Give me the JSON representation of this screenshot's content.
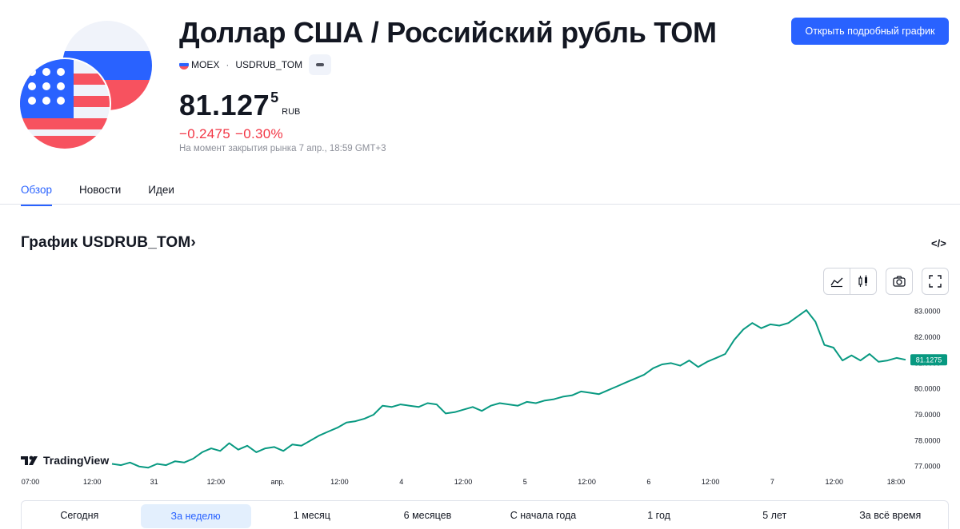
{
  "header": {
    "title": "Доллар США / Российский рубль TOM",
    "exchange": "MOEX",
    "symbol": "USDRUB_TOM",
    "open_button": "Открыть подробный график"
  },
  "quote": {
    "price_main": "81.127",
    "price_sup": "5",
    "currency": "RUB",
    "change_abs": "−0.2475",
    "change_pct": "−0.30%",
    "note": "На момент закрытия рынка 7 апр., 18:59 GMT+3"
  },
  "tabs": [
    "Обзор",
    "Новости",
    "Идеи"
  ],
  "section": {
    "title": "График USDRUB_TOM›",
    "embed": "</>"
  },
  "branding": {
    "tv_logo": "TradingView"
  },
  "colors": {
    "accent": "#2962ff",
    "line": "#089981",
    "negative": "#f23645"
  },
  "chart_data": {
    "type": "line",
    "series": [
      {
        "values": [
          77.1,
          77.05,
          77.15,
          77.0,
          76.95,
          77.1,
          77.05,
          77.2,
          77.15,
          77.3,
          77.55,
          77.7,
          77.6,
          77.9,
          77.65,
          77.8,
          77.55,
          77.7,
          77.75,
          77.6,
          77.85,
          77.8,
          78.0,
          78.2,
          78.35,
          78.5,
          78.7,
          78.75,
          78.85,
          79.0,
          79.35,
          79.3,
          79.4,
          79.35,
          79.3,
          79.45,
          79.4,
          79.05,
          79.1,
          79.2,
          79.3,
          79.15,
          79.35,
          79.45,
          79.4,
          79.35,
          79.5,
          79.45,
          79.55,
          79.6,
          79.7,
          79.75,
          79.9,
          79.85,
          79.8,
          79.95,
          80.1,
          80.25,
          80.4,
          80.55,
          80.8,
          80.95,
          81.0,
          80.9,
          81.1,
          80.85,
          81.05,
          81.2,
          81.35,
          81.9,
          82.3,
          82.55,
          82.35,
          82.5,
          82.45,
          82.55,
          82.8,
          83.05,
          82.6,
          81.7,
          81.6,
          81.1,
          81.3,
          81.1,
          81.35,
          81.05,
          81.1,
          81.2,
          81.1275
        ],
        "last_value": "81.1275"
      }
    ],
    "x_tick_labels": [
      "07:00",
      "12:00",
      "31",
      "12:00",
      "апр.",
      "12:00",
      "4",
      "12:00",
      "5",
      "12:00",
      "6",
      "12:00",
      "7",
      "12:00",
      "18:00"
    ],
    "y_tick_labels": [
      "83.0000",
      "82.0000",
      "81.0000",
      "80.0000",
      "79.0000",
      "78.0000",
      "77.0000"
    ],
    "y_ticks": [
      83,
      82,
      81,
      80,
      79,
      78,
      77
    ],
    "ylim": [
      76.65,
      83.3
    ],
    "grid": false
  },
  "ranges": [
    "Сегодня",
    "За неделю",
    "1 месяц",
    "6 месяцев",
    "С начала года",
    "1 год",
    "5 лет",
    "За всё время"
  ],
  "active_range": 1
}
